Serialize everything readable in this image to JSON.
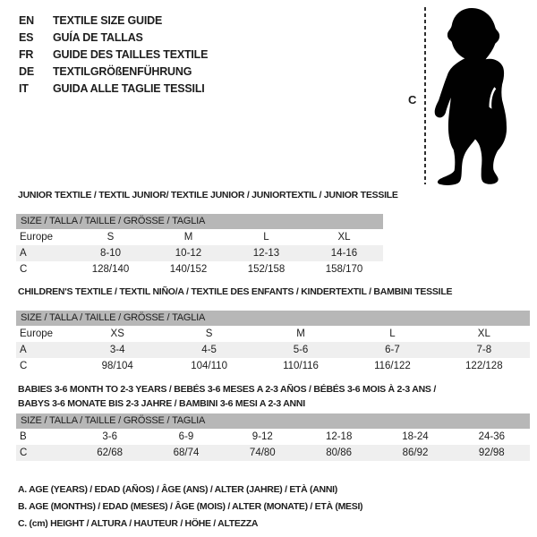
{
  "colors": {
    "text": "#1d1d1d",
    "table_header_bg": "#b7b7b7",
    "row_alt_bg": "#efefef",
    "silhouette": "#010101",
    "background": "#ffffff"
  },
  "language_guide": {
    "items": [
      {
        "code": "EN",
        "label": "TEXTILE SIZE GUIDE"
      },
      {
        "code": "ES",
        "label": "GUÍA DE TALLAS"
      },
      {
        "code": "FR",
        "label": "GUIDE DES TAILLES TEXTILE"
      },
      {
        "code": "DE",
        "label": "TEXTILGRÖßENFÜHRUNG"
      },
      {
        "code": "IT",
        "label": "GUIDA ALLE TAGLIE TESSILI"
      }
    ]
  },
  "figure": {
    "measure_label": "C",
    "icon": "baby-silhouette"
  },
  "tables": [
    {
      "id": "junior",
      "title": "JUNIOR TEXTILE / TEXTIL JUNIOR/ TEXTILE JUNIOR / JUNIORTEXTIL / JUNIOR TESSILE",
      "size_header": "SIZE / TALLA / TAILLE / GRÖSSE / TAGLIA",
      "rows": [
        {
          "label": "Europe",
          "cells": [
            "S",
            "M",
            "L",
            "XL"
          ],
          "shaded": false
        },
        {
          "label": "A",
          "cells": [
            "8-10",
            "10-12",
            "12-13",
            "14-16"
          ],
          "shaded": true
        },
        {
          "label": "C",
          "cells": [
            "128/140",
            "140/152",
            "152/158",
            "158/170"
          ],
          "shaded": false
        }
      ]
    },
    {
      "id": "children",
      "title": "CHILDREN'S TEXTILE / TEXTIL NIÑO/A / TEXTILE DES ENFANTS / KINDERTEXTIL / BAMBINI TESSILE",
      "size_header": "SIZE / TALLA / TAILLE / GRÖSSE / TAGLIA",
      "rows": [
        {
          "label": "Europe",
          "cells": [
            "XS",
            "S",
            "M",
            "L",
            "XL"
          ],
          "shaded": false
        },
        {
          "label": "A",
          "cells": [
            "3-4",
            "4-5",
            "5-6",
            "6-7",
            "7-8"
          ],
          "shaded": true
        },
        {
          "label": "C",
          "cells": [
            "98/104",
            "104/110",
            "110/116",
            "116/122",
            "122/128"
          ],
          "shaded": false
        }
      ]
    },
    {
      "id": "babies",
      "title": "BABIES 3-6 MONTH TO 2-3 YEARS / BEBÉS 3-6 MESES A 2-3 AÑOS / BÉBÉS 3-6 MOIS À 2-3 ANS / BABYS 3-6 MONATE BIS 2-3 JAHRE / BAMBINI 3-6 MESI A 2-3 ANNI",
      "size_header": "SIZE / TALLA / TAILLE / GRÖSSE / TAGLIA",
      "rows": [
        {
          "label": "B",
          "cells": [
            "3-6",
            "6-9",
            "9-12",
            "12-18",
            "18-24",
            "24-36"
          ],
          "shaded": false
        },
        {
          "label": "C",
          "cells": [
            "62/68",
            "68/74",
            "74/80",
            "80/86",
            "86/92",
            "92/98"
          ],
          "shaded": true
        }
      ]
    }
  ],
  "footnotes": [
    "A. AGE (YEARS) / EDAD (AÑOS) / ÂGE (ANS) / ALTER (JAHRE) / ETÀ (ANNI)",
    "B. AGE (MONTHS) / EDAD (MESES) / ÂGE (MOIS) / ALTER (MONATE) / ETÀ (MESI)",
    "C. (cm) HEIGHT / ALTURA / HAUTEUR / HÖHE / ALTEZZA"
  ]
}
